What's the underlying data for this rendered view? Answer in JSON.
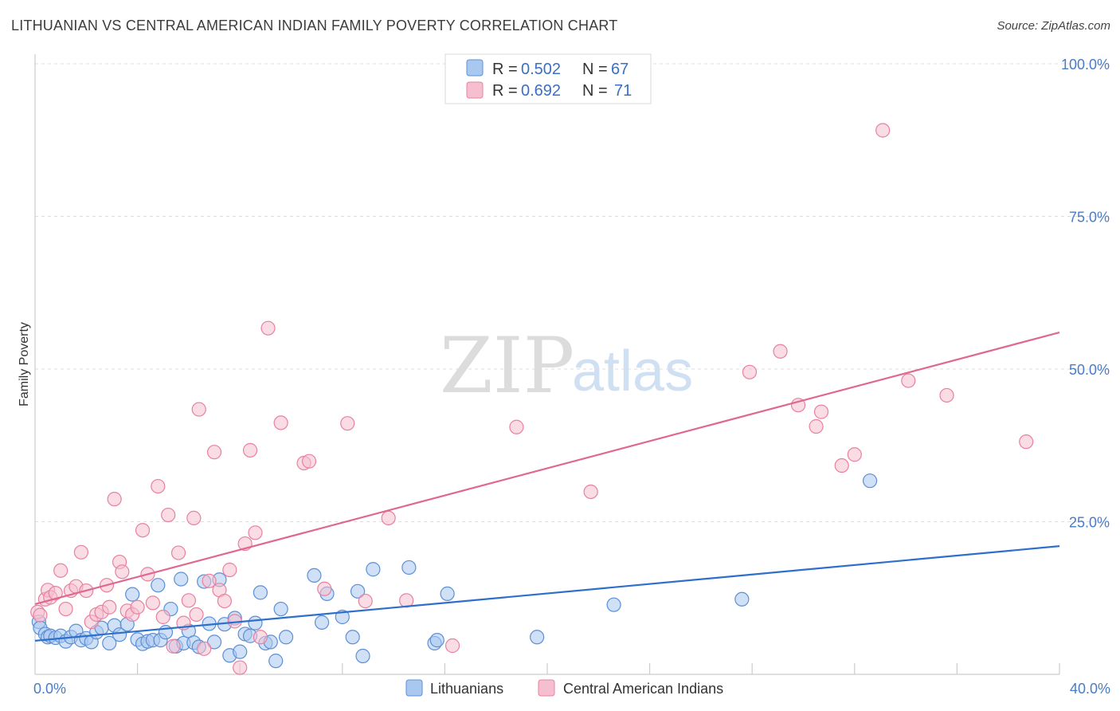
{
  "title": "LITHUANIAN VS CENTRAL AMERICAN INDIAN FAMILY POVERTY CORRELATION CHART",
  "source": "Source: ZipAtlas.com",
  "watermark": {
    "zip": "ZIP",
    "atlas": "atlas"
  },
  "colors": {
    "blue_fill": "#a9c8f0",
    "blue_stroke": "#5b8fd6",
    "blue_line": "#2f6fcc",
    "pink_fill": "#f6bfd0",
    "pink_stroke": "#e9809f",
    "pink_line": "#e06890",
    "tick": "#4a7bc6",
    "grid": "#dddddd"
  },
  "legend": {
    "r_label": "R =",
    "n_label": "N =",
    "items": [
      {
        "r": "0.502",
        "n": "67"
      },
      {
        "r": "0.692",
        "n": "71"
      }
    ]
  },
  "chart_data": {
    "type": "scatter",
    "title": "LITHUANIAN VS CENTRAL AMERICAN INDIAN FAMILY POVERTY CORRELATION CHART",
    "xlabel": "",
    "ylabel": "Family Poverty",
    "xlim": [
      0,
      40
    ],
    "ylim": [
      0,
      100
    ],
    "x_tick_labels": [
      {
        "value": 0,
        "label": "0.0%"
      },
      {
        "value": 40,
        "label": "40.0%"
      }
    ],
    "y_tick_labels": [
      {
        "value": 25,
        "label": "25.0%"
      },
      {
        "value": 50,
        "label": "50.0%"
      },
      {
        "value": 75,
        "label": "75.0%"
      },
      {
        "value": 100,
        "label": "100.0%"
      }
    ],
    "legend_position": "top-center",
    "series": [
      {
        "name": "Lithuanians",
        "r": 0.502,
        "n": 67,
        "trend": {
          "x": [
            0,
            40
          ],
          "y": [
            5.5,
            21.0
          ]
        },
        "points": [
          [
            0.15,
            8.6
          ],
          [
            0.2,
            7.6
          ],
          [
            0.4,
            6.6
          ],
          [
            0.5,
            6.1
          ],
          [
            0.6,
            6.3
          ],
          [
            0.8,
            6.0
          ],
          [
            1.0,
            6.3
          ],
          [
            1.2,
            5.4
          ],
          [
            1.4,
            6.1
          ],
          [
            1.6,
            7.1
          ],
          [
            1.8,
            5.6
          ],
          [
            2.0,
            5.9
          ],
          [
            2.2,
            5.3
          ],
          [
            2.4,
            6.9
          ],
          [
            2.6,
            7.6
          ],
          [
            2.9,
            5.1
          ],
          [
            3.1,
            8.0
          ],
          [
            3.3,
            6.5
          ],
          [
            3.6,
            8.2
          ],
          [
            3.8,
            13.1
          ],
          [
            4.0,
            5.7
          ],
          [
            4.2,
            5.0
          ],
          [
            4.4,
            5.4
          ],
          [
            4.6,
            5.6
          ],
          [
            4.8,
            14.6
          ],
          [
            4.9,
            5.6
          ],
          [
            5.1,
            6.9
          ],
          [
            5.3,
            10.7
          ],
          [
            5.5,
            4.6
          ],
          [
            5.7,
            15.6
          ],
          [
            5.8,
            5.1
          ],
          [
            6.0,
            7.1
          ],
          [
            6.2,
            5.2
          ],
          [
            6.4,
            4.5
          ],
          [
            6.6,
            15.2
          ],
          [
            6.8,
            8.3
          ],
          [
            7.0,
            5.3
          ],
          [
            7.2,
            15.5
          ],
          [
            7.4,
            8.2
          ],
          [
            7.6,
            3.1
          ],
          [
            7.8,
            9.2
          ],
          [
            8.0,
            3.7
          ],
          [
            8.2,
            6.6
          ],
          [
            8.4,
            6.3
          ],
          [
            8.6,
            8.4
          ],
          [
            8.8,
            13.4
          ],
          [
            9.0,
            5.1
          ],
          [
            9.2,
            5.3
          ],
          [
            9.4,
            2.2
          ],
          [
            9.6,
            10.7
          ],
          [
            9.8,
            6.1
          ],
          [
            10.9,
            16.2
          ],
          [
            11.2,
            8.5
          ],
          [
            11.4,
            13.2
          ],
          [
            12.0,
            9.4
          ],
          [
            12.4,
            6.1
          ],
          [
            12.6,
            13.6
          ],
          [
            12.8,
            3.0
          ],
          [
            13.2,
            17.2
          ],
          [
            14.6,
            17.5
          ],
          [
            15.6,
            5.1
          ],
          [
            15.7,
            5.6
          ],
          [
            16.1,
            13.2
          ],
          [
            19.6,
            6.1
          ],
          [
            22.6,
            11.4
          ],
          [
            27.6,
            12.3
          ],
          [
            32.6,
            31.7
          ]
        ]
      },
      {
        "name": "Central American Indians",
        "r": 0.692,
        "n": 71,
        "trend": {
          "x": [
            0,
            40
          ],
          "y": [
            11.5,
            56.0
          ]
        },
        "points": [
          [
            0.1,
            10.2
          ],
          [
            0.2,
            9.7
          ],
          [
            0.4,
            12.3
          ],
          [
            0.5,
            13.8
          ],
          [
            0.6,
            12.6
          ],
          [
            0.8,
            13.3
          ],
          [
            1.0,
            17.0
          ],
          [
            1.2,
            10.7
          ],
          [
            1.4,
            13.7
          ],
          [
            1.6,
            14.4
          ],
          [
            1.8,
            20.0
          ],
          [
            2.0,
            13.7
          ],
          [
            2.2,
            8.6
          ],
          [
            2.4,
            9.8
          ],
          [
            2.6,
            10.2
          ],
          [
            2.8,
            14.6
          ],
          [
            2.9,
            11.0
          ],
          [
            3.1,
            28.7
          ],
          [
            3.3,
            18.4
          ],
          [
            3.4,
            16.8
          ],
          [
            3.6,
            10.4
          ],
          [
            3.8,
            9.8
          ],
          [
            4.0,
            11.0
          ],
          [
            4.2,
            23.6
          ],
          [
            4.4,
            16.4
          ],
          [
            4.6,
            11.7
          ],
          [
            4.8,
            30.8
          ],
          [
            5.0,
            9.4
          ],
          [
            5.2,
            26.1
          ],
          [
            5.4,
            4.6
          ],
          [
            5.6,
            19.9
          ],
          [
            5.8,
            8.4
          ],
          [
            6.0,
            12.1
          ],
          [
            6.2,
            25.6
          ],
          [
            6.4,
            43.4
          ],
          [
            6.6,
            4.2
          ],
          [
            6.8,
            15.3
          ],
          [
            7.0,
            36.4
          ],
          [
            7.2,
            13.8
          ],
          [
            7.4,
            12.0
          ],
          [
            7.6,
            17.1
          ],
          [
            7.8,
            8.7
          ],
          [
            8.0,
            1.1
          ],
          [
            8.2,
            21.4
          ],
          [
            8.4,
            36.7
          ],
          [
            8.6,
            23.2
          ],
          [
            8.8,
            6.1
          ],
          [
            9.1,
            56.7
          ],
          [
            9.6,
            41.2
          ],
          [
            10.5,
            34.6
          ],
          [
            10.7,
            34.9
          ],
          [
            11.3,
            14.0
          ],
          [
            12.2,
            41.1
          ],
          [
            12.9,
            12.0
          ],
          [
            13.8,
            25.6
          ],
          [
            14.5,
            12.1
          ],
          [
            16.3,
            4.7
          ],
          [
            18.8,
            40.5
          ],
          [
            21.7,
            29.9
          ],
          [
            27.9,
            49.5
          ],
          [
            29.1,
            52.9
          ],
          [
            29.8,
            44.1
          ],
          [
            30.5,
            40.6
          ],
          [
            30.7,
            43.0
          ],
          [
            31.5,
            34.2
          ],
          [
            32.0,
            36.0
          ],
          [
            34.1,
            48.1
          ],
          [
            35.6,
            45.7
          ],
          [
            38.7,
            38.1
          ],
          [
            33.1,
            89.1
          ],
          [
            6.3,
            9.8
          ]
        ]
      }
    ]
  }
}
